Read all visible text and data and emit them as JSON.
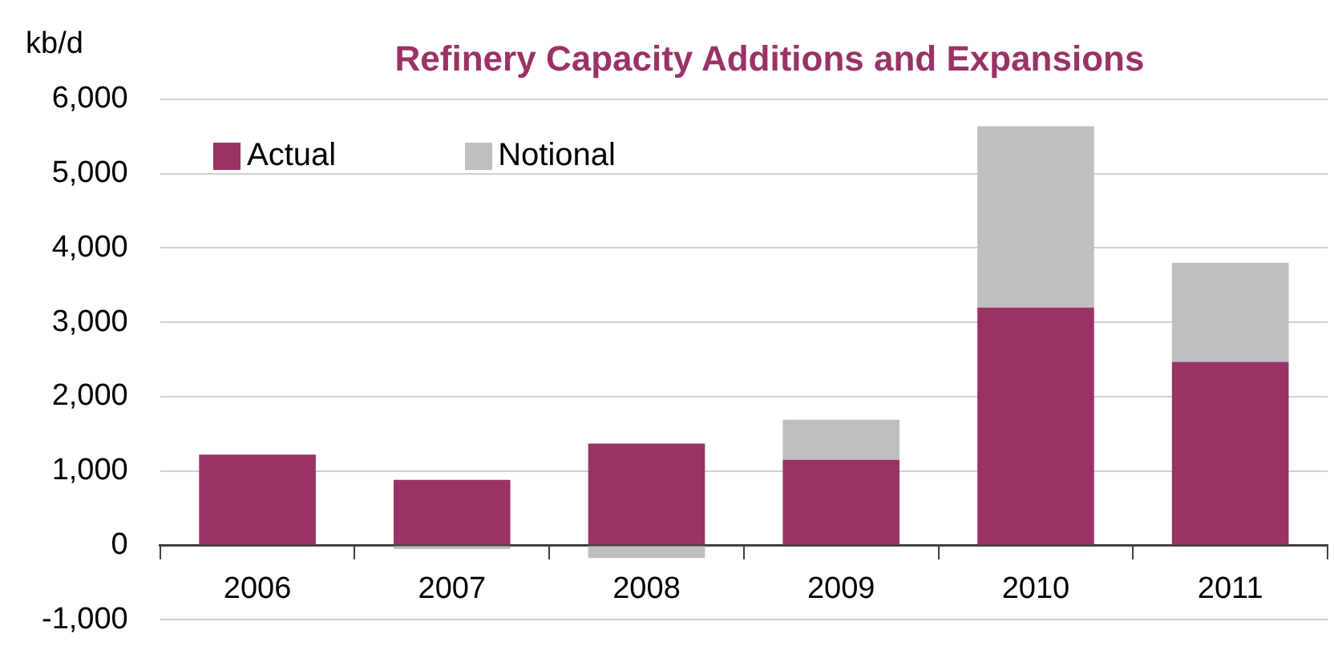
{
  "chart_data": {
    "type": "bar",
    "title": "Refinery Capacity Additions and Expansions",
    "ylabel": "kb/d",
    "categories": [
      "2006",
      "2007",
      "2008",
      "2009",
      "2010",
      "2011"
    ],
    "series": [
      {
        "name": "Actual",
        "color": "#993366",
        "values": [
          1220,
          880,
          1370,
          1150,
          3200,
          2470
        ]
      },
      {
        "name": "Notional",
        "color": "#bfbfbf",
        "values": [
          null,
          -50,
          -170,
          540,
          2440,
          1330
        ]
      }
    ],
    "stacked": true,
    "ylim": [
      -1000,
      6000
    ],
    "yticks": [
      {
        "value": -1000,
        "label": "-1,000"
      },
      0,
      {
        "value": 1000,
        "label": "1,000"
      },
      {
        "value": 2000,
        "label": "2,000"
      },
      {
        "value": 3000,
        "label": "3,000"
      },
      {
        "value": 4000,
        "label": "4,000"
      },
      {
        "value": 5000,
        "label": "5,000"
      },
      {
        "value": 6000,
        "label": "6,000"
      }
    ],
    "grid": "y",
    "legend": "top left"
  }
}
